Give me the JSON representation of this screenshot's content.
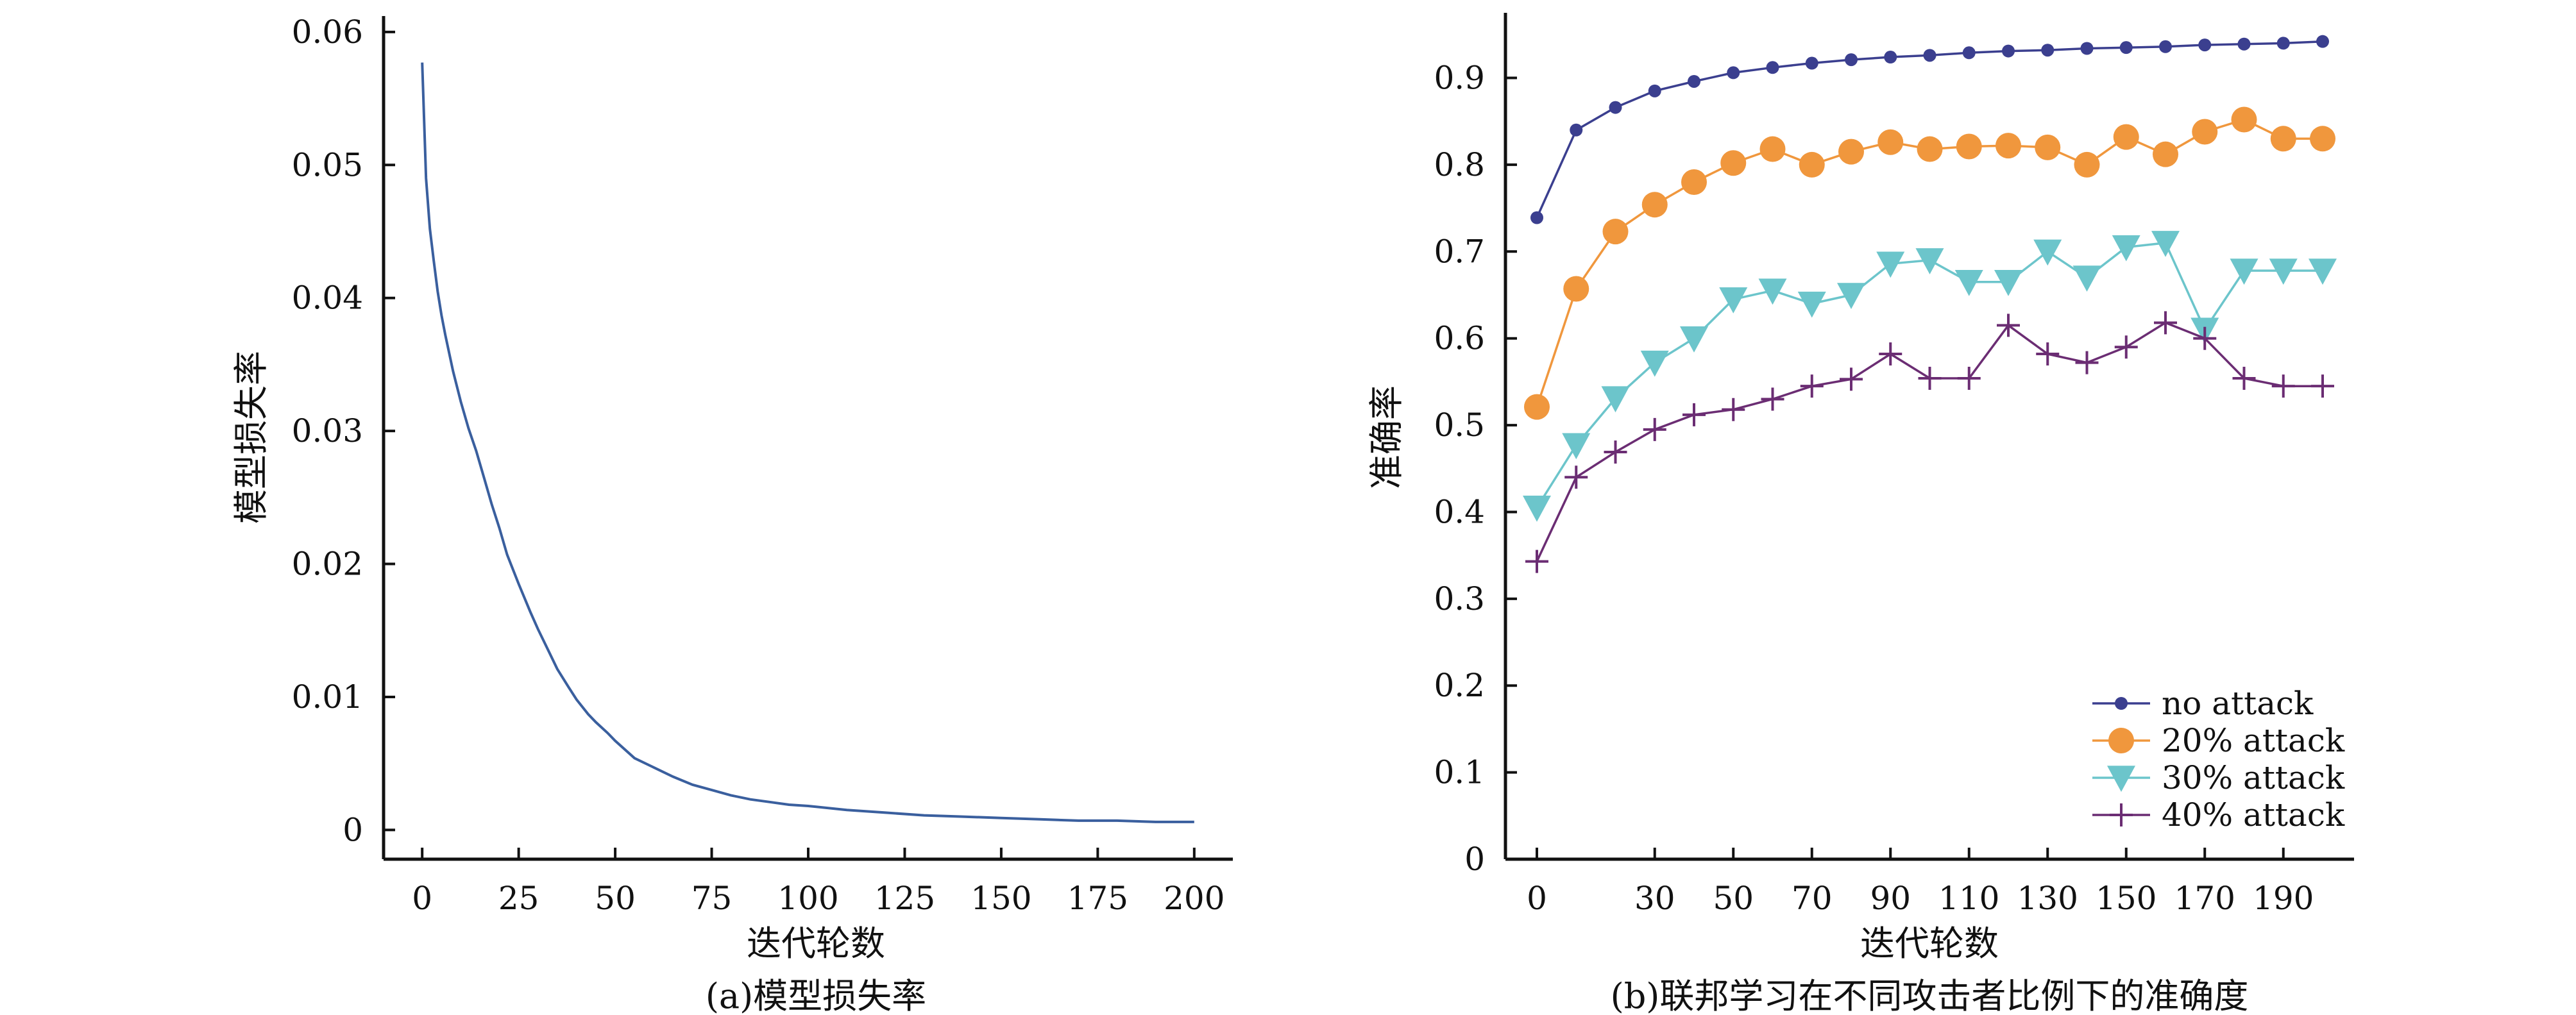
{
  "chart_data": [
    {
      "type": "line",
      "caption": "(a)模型损失率",
      "xlabel": "迭代轮数",
      "ylabel": "模型损失率",
      "xlim": [
        -10,
        210
      ],
      "ylim": [
        -0.0022,
        0.0612
      ],
      "x_ticks": [
        0,
        25,
        50,
        75,
        100,
        125,
        150,
        175,
        200
      ],
      "x_tick_labels": [
        "0",
        "25",
        "50",
        "75",
        "100",
        "125",
        "150",
        "175",
        "200"
      ],
      "y_ticks": [
        0,
        0.01,
        0.02,
        0.03,
        0.04,
        0.05,
        0.06
      ],
      "y_tick_labels": [
        "0",
        "0.01",
        "0.02",
        "0.03",
        "0.04",
        "0.05",
        "0.06"
      ],
      "grid": false,
      "color": "#3a5f9e",
      "series": [
        {
          "x": [
            0,
            1,
            2,
            3,
            4,
            5,
            6,
            8,
            10,
            12,
            14,
            16,
            18,
            20,
            22,
            25,
            28,
            30,
            33,
            35,
            38,
            40,
            43,
            45,
            48,
            50,
            55,
            60,
            65,
            70,
            75,
            80,
            85,
            90,
            95,
            100,
            110,
            120,
            130,
            140,
            150,
            160,
            170,
            180,
            190,
            200
          ],
          "values": [
            0.0577,
            0.049,
            0.0452,
            0.0428,
            0.0405,
            0.0387,
            0.0372,
            0.0345,
            0.0322,
            0.0302,
            0.0285,
            0.0265,
            0.0245,
            0.0227,
            0.0207,
            0.0185,
            0.0164,
            0.0151,
            0.0133,
            0.0121,
            0.0107,
            0.0098,
            0.0087,
            0.0081,
            0.0073,
            0.0067,
            0.0054,
            0.0047,
            0.004,
            0.0034,
            0.003,
            0.0026,
            0.0023,
            0.0021,
            0.0019,
            0.0018,
            0.0015,
            0.0013,
            0.0011,
            0.001,
            0.0009,
            0.0008,
            0.0007,
            0.0007,
            0.0006,
            0.0006
          ]
        }
      ]
    },
    {
      "type": "line",
      "caption": "(b)联邦学习在不同攻击者比例下的准确度",
      "xlabel": "迭代轮数",
      "ylabel": "准确率",
      "xlim": [
        -8,
        208
      ],
      "ylim": [
        0,
        0.975
      ],
      "x_ticks": [
        0,
        30,
        50,
        70,
        90,
        110,
        130,
        150,
        170,
        190
      ],
      "x_tick_labels": [
        "0",
        "30",
        "50",
        "70",
        "90",
        "110",
        "130",
        "150",
        "170",
        "190"
      ],
      "y_ticks": [
        0,
        0.1,
        0.2,
        0.3,
        0.4,
        0.5,
        0.6,
        0.7,
        0.8,
        0.9
      ],
      "y_tick_labels": [
        "0",
        "0.1",
        "0.2",
        "0.3",
        "0.4",
        "0.5",
        "0.6",
        "0.7",
        "0.8",
        "0.9"
      ],
      "grid": false,
      "legend_position": "bottom-right",
      "x": [
        0,
        10,
        20,
        30,
        40,
        50,
        60,
        70,
        80,
        90,
        100,
        110,
        120,
        130,
        140,
        150,
        160,
        170,
        180,
        190,
        200
      ],
      "series": [
        {
          "name": "no attack",
          "color": "#3b3f8f",
          "marker": "small-dot",
          "values": [
            0.739,
            0.84,
            0.866,
            0.885,
            0.896,
            0.906,
            0.912,
            0.917,
            0.921,
            0.924,
            0.926,
            0.929,
            0.931,
            0.932,
            0.934,
            0.935,
            0.936,
            0.938,
            0.939,
            0.94,
            0.942
          ]
        },
        {
          "name": "20% attack",
          "color": "#f0973d",
          "marker": "large-dot",
          "values": [
            0.521,
            0.657,
            0.723,
            0.754,
            0.78,
            0.802,
            0.818,
            0.8,
            0.815,
            0.826,
            0.818,
            0.821,
            0.822,
            0.82,
            0.8,
            0.832,
            0.812,
            0.838,
            0.852,
            0.83,
            0.83
          ]
        },
        {
          "name": "30% attack",
          "color": "#6cc5cb",
          "marker": "triangle-down",
          "values": [
            0.405,
            0.477,
            0.531,
            0.572,
            0.6,
            0.645,
            0.655,
            0.64,
            0.65,
            0.686,
            0.69,
            0.665,
            0.665,
            0.7,
            0.67,
            0.705,
            0.71,
            0.61,
            0.678,
            0.678,
            0.678
          ]
        },
        {
          "name": "40% attack",
          "color": "#6b2d73",
          "marker": "plus",
          "values": [
            0.343,
            0.44,
            0.469,
            0.495,
            0.512,
            0.518,
            0.53,
            0.545,
            0.553,
            0.582,
            0.554,
            0.554,
            0.615,
            0.582,
            0.572,
            0.59,
            0.618,
            0.6,
            0.554,
            0.545,
            0.545
          ]
        }
      ]
    }
  ]
}
